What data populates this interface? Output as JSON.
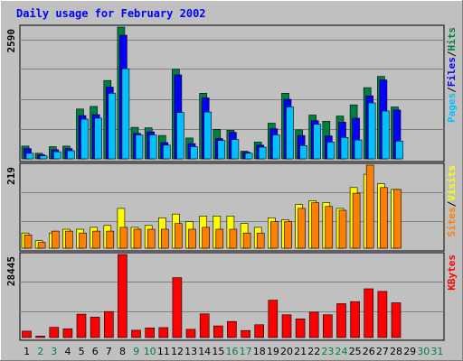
{
  "chart_data": {
    "type": "bar",
    "title": "Daily usage for February 2002",
    "days": [
      "1",
      "2",
      "3",
      "4",
      "5",
      "6",
      "7",
      "8",
      "9",
      "10",
      "11",
      "12",
      "13",
      "14",
      "15",
      "16",
      "17",
      "18",
      "19",
      "20",
      "21",
      "22",
      "23",
      "24",
      "25",
      "26",
      "27",
      "28",
      "29",
      "30",
      "31"
    ],
    "weekend_days": [
      "2",
      "3",
      "9",
      "10",
      "16",
      "17",
      "23",
      "24",
      "30",
      "31"
    ],
    "colors": {
      "hits": "#008040",
      "files": "#0000ff",
      "pages": "#00c0ff",
      "visits": "#ffff00",
      "sites": "#ff8000",
      "kbytes": "#ff0000",
      "weekday_label": "#000000",
      "weekend_label": "#008040",
      "title": "#0000ff",
      "background": "#c0c0c0"
    },
    "panels": [
      {
        "key": "hits_files_pages",
        "max_label": "2590",
        "ymax": 2590,
        "legend": [
          {
            "text": "Pages",
            "color": "#00c0ff"
          },
          {
            "text": "/",
            "color": "#000000"
          },
          {
            "text": "Files",
            "color": "#0000ff"
          },
          {
            "text": "/",
            "color": "#000000"
          },
          {
            "text": "Hits",
            "color": "#008040"
          }
        ],
        "series": [
          {
            "name": "Hits",
            "values": [
              250,
              110,
              240,
              250,
              980,
              1030,
              1540,
              2590,
              620,
              610,
              460,
              1760,
              410,
              1290,
              580,
              560,
              150,
              330,
              700,
              1290,
              570,
              860,
              740,
              840,
              1060,
              1400,
              1620,
              1020,
              0,
              0,
              0
            ]
          },
          {
            "name": "Files",
            "values": [
              200,
              80,
              180,
              200,
              850,
              870,
              1410,
              2430,
              500,
              530,
              320,
              1650,
              300,
              1200,
              400,
              520,
              130,
              270,
              590,
              1170,
              460,
              750,
              450,
              720,
              800,
              1240,
              1550,
              960,
              0,
              0,
              0
            ]
          },
          {
            "name": "Pages",
            "values": [
              110,
              60,
              140,
              160,
              780,
              800,
              1290,
              1770,
              470,
              470,
              270,
              910,
              240,
              920,
              360,
              380,
              110,
              230,
              470,
              1020,
              260,
              680,
              330,
              420,
              370,
              1100,
              940,
              350,
              0,
              0,
              0
            ]
          }
        ]
      },
      {
        "key": "visits_sites",
        "max_label": "219",
        "ymax": 219,
        "legend": [
          {
            "text": "Sites",
            "color": "#ff8000"
          },
          {
            "text": "/",
            "color": "#000000"
          },
          {
            "text": "Visits",
            "color": "#ffff00"
          }
        ],
        "series": [
          {
            "name": "Visits",
            "values": [
              40,
              20,
              40,
              50,
              50,
              55,
              60,
              105,
              55,
              60,
              80,
              90,
              70,
              85,
              85,
              85,
              65,
              55,
              80,
              75,
              115,
              125,
              120,
              105,
              160,
              195,
              170,
              155,
              0,
              0,
              0
            ]
          },
          {
            "name": "Sites",
            "values": [
              35,
              15,
              45,
              45,
              40,
              45,
              45,
              55,
              50,
              50,
              50,
              65,
              50,
              55,
              50,
              50,
              40,
              40,
              70,
              70,
              105,
              120,
              110,
              100,
              145,
              219,
              160,
              155,
              0,
              0,
              0
            ]
          }
        ]
      },
      {
        "key": "kbytes",
        "max_label": "28445",
        "ymax": 28445,
        "legend": [
          {
            "text": "KBytes",
            "color": "#ff0000"
          }
        ],
        "series": [
          {
            "name": "KBytes",
            "values": [
              2200,
              500,
              3500,
              3000,
              8000,
              7000,
              8900,
              28445,
              2500,
              3300,
              3400,
              20500,
              2800,
              8100,
              4000,
              5500,
              2400,
              4400,
              12800,
              7800,
              6400,
              8700,
              7800,
              11600,
              12300,
              16700,
              15800,
              11900,
              0,
              0,
              0
            ]
          }
        ]
      }
    ]
  }
}
